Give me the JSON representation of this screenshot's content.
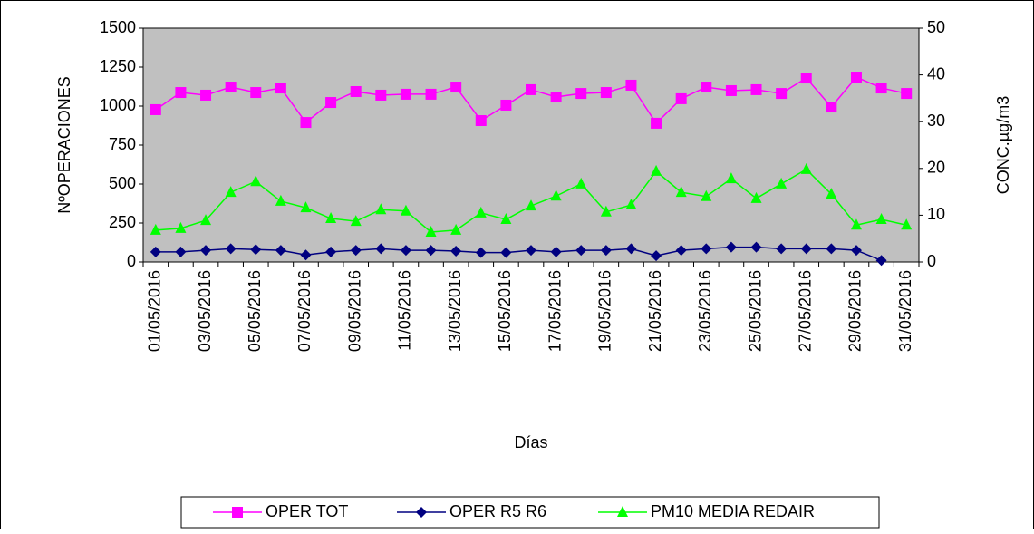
{
  "chart_data": {
    "type": "line",
    "x_label": "Días",
    "y_label": "NºOPERACIONES",
    "y2_label": "CONC.µg/m3",
    "categories": [
      "01/05/2016",
      null,
      "03/05/2016",
      null,
      "05/05/2016",
      null,
      "07/05/2016",
      null,
      "09/05/2016",
      null,
      "11/05/2016",
      null,
      "13/05/2016",
      null,
      "15/05/2016",
      null,
      "17/05/2016",
      null,
      "19/05/2016",
      null,
      "21/05/2016",
      null,
      "23/05/2016",
      null,
      "25/05/2016",
      null,
      "27/05/2016",
      null,
      "29/05/2016",
      null,
      "31/05/2016"
    ],
    "series": [
      {
        "name": "OPER TOT",
        "color": "#ff00ff",
        "marker": "square",
        "values": [
          977,
          1087,
          1070,
          1122,
          1087,
          1116,
          895,
          1023,
          1093,
          1070,
          1076,
          1076,
          1122,
          907,
          1006,
          1105,
          1058,
          1081,
          1087,
          1134,
          890,
          1047,
          1122,
          1099,
          1105,
          1081,
          1180,
          994,
          1186,
          1116,
          1081
        ]
      },
      {
        "name": "OPER R5 R6",
        "color": "#000080",
        "marker": "diamond",
        "values": [
          65,
          65,
          75,
          85,
          80,
          75,
          45,
          65,
          75,
          85,
          75,
          75,
          70,
          60,
          60,
          75,
          65,
          75,
          75,
          85,
          40,
          75,
          85,
          95,
          95,
          85,
          85,
          85,
          75,
          10,
          null
        ]
      },
      {
        "name": "PM10 MEDIA REDAIR",
        "color": "#00ff00",
        "marker": "triangle",
        "axis": "y2",
        "values": [
          6.8,
          7.2,
          8.9,
          14.9,
          17.2,
          13.0,
          11.6,
          9.3,
          8.7,
          11.2,
          10.9,
          6.4,
          6.8,
          10.5,
          9.1,
          12.0,
          14.1,
          16.7,
          10.7,
          12.2,
          19.4,
          14.9,
          14.0,
          17.8,
          13.6,
          16.7,
          19.8,
          14.5,
          7.9,
          9.1,
          7.9
        ]
      }
    ],
    "ylim": [
      0,
      1500
    ],
    "yticks": [
      0,
      250,
      500,
      750,
      1000,
      1250,
      1500
    ],
    "y2lim": [
      0,
      50
    ],
    "y2ticks": [
      0,
      10,
      20,
      30,
      40,
      50
    ],
    "plot_background": "#c0c0c0",
    "legend": "bottom"
  }
}
